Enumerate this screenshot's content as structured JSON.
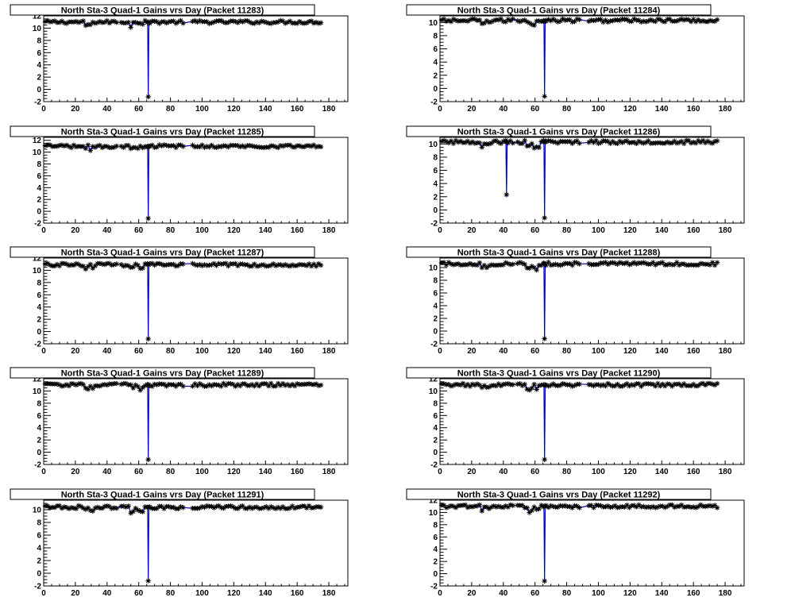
{
  "chart_data": [
    {
      "type": "line",
      "title": "North Sta-3 Quad-1 Gains vrs Day (Packet 11283)",
      "xlim": [
        0,
        192
      ],
      "ylim": [
        -2,
        12
      ],
      "xticks": [
        0,
        20,
        40,
        60,
        80,
        100,
        120,
        140,
        160,
        180
      ],
      "yticks": [
        -2,
        0,
        2,
        4,
        6,
        8,
        10,
        12
      ],
      "baseline": 11.0,
      "dips": [
        {
          "x": 66,
          "y": -1.2
        }
      ],
      "series": [
        {
          "marker": "star",
          "line_color": "#0000cc"
        }
      ]
    },
    {
      "type": "line",
      "title": "North Sta-3 Quad-1 Gains vrs Day (Packet 11284)",
      "xlim": [
        0,
        192
      ],
      "ylim": [
        -2,
        11
      ],
      "xticks": [
        0,
        20,
        40,
        60,
        80,
        100,
        120,
        140,
        160,
        180
      ],
      "yticks": [
        -2,
        0,
        2,
        4,
        6,
        8,
        10
      ],
      "baseline": 10.3,
      "dips": [
        {
          "x": 66,
          "y": -1.2
        }
      ],
      "series": [
        {
          "marker": "star",
          "line_color": "#0000cc"
        }
      ]
    },
    {
      "type": "line",
      "title": "North Sta-3 Quad-1 Gains vrs Day (Packet 11285)",
      "xlim": [
        0,
        192
      ],
      "ylim": [
        -2,
        12.5
      ],
      "xticks": [
        0,
        20,
        40,
        60,
        80,
        100,
        120,
        140,
        160,
        180
      ],
      "yticks": [
        -2,
        0,
        2,
        4,
        6,
        8,
        10,
        12
      ],
      "baseline": 11.0,
      "dips": [
        {
          "x": 66,
          "y": -1.2
        }
      ],
      "series": [
        {
          "marker": "star",
          "line_color": "#0000cc"
        }
      ]
    },
    {
      "type": "line",
      "title": "North Sta-3 Quad-1 Gains vrs Day (Packet 11286)",
      "xlim": [
        0,
        192
      ],
      "ylim": [
        -2,
        11
      ],
      "xticks": [
        0,
        20,
        40,
        60,
        80,
        100,
        120,
        140,
        160,
        180
      ],
      "yticks": [
        -2,
        0,
        2,
        4,
        6,
        8,
        10
      ],
      "baseline": 10.3,
      "dips": [
        {
          "x": 42,
          "y": 2.3
        },
        {
          "x": 66,
          "y": -1.2
        }
      ],
      "series": [
        {
          "marker": "star",
          "line_color": "#0000cc"
        }
      ]
    },
    {
      "type": "line",
      "title": "North Sta-3 Quad-1 Gains vrs Day (Packet 11287)",
      "xlim": [
        0,
        192
      ],
      "ylim": [
        -2,
        12
      ],
      "xticks": [
        0,
        20,
        40,
        60,
        80,
        100,
        120,
        140,
        160,
        180
      ],
      "yticks": [
        -2,
        0,
        2,
        4,
        6,
        8,
        10,
        12
      ],
      "baseline": 10.9,
      "dips": [
        {
          "x": 66,
          "y": -1.2
        }
      ],
      "series": [
        {
          "marker": "star",
          "line_color": "#0000cc"
        }
      ]
    },
    {
      "type": "line",
      "title": "North Sta-3 Quad-1 Gains vrs Day (Packet 11288)",
      "xlim": [
        0,
        192
      ],
      "ylim": [
        -2,
        11.5
      ],
      "xticks": [
        0,
        20,
        40,
        60,
        80,
        100,
        120,
        140,
        160,
        180
      ],
      "yticks": [
        -2,
        0,
        2,
        4,
        6,
        8,
        10
      ],
      "baseline": 10.6,
      "dips": [
        {
          "x": 66,
          "y": -1.2
        }
      ],
      "series": [
        {
          "marker": "star",
          "line_color": "#0000cc"
        }
      ]
    },
    {
      "type": "line",
      "title": "North Sta-3 Quad-1 Gains vrs Day (Packet 11289)",
      "xlim": [
        0,
        192
      ],
      "ylim": [
        -2,
        12
      ],
      "xticks": [
        0,
        20,
        40,
        60,
        80,
        100,
        120,
        140,
        160,
        180
      ],
      "yticks": [
        -2,
        0,
        2,
        4,
        6,
        8,
        10,
        12
      ],
      "baseline": 11.0,
      "dips": [
        {
          "x": 66,
          "y": -1.2
        }
      ],
      "series": [
        {
          "marker": "star",
          "line_color": "#0000cc"
        }
      ]
    },
    {
      "type": "line",
      "title": "North Sta-3 Quad-1 Gains vrs Day (Packet 11290)",
      "xlim": [
        0,
        192
      ],
      "ylim": [
        -2,
        12
      ],
      "xticks": [
        0,
        20,
        40,
        60,
        80,
        100,
        120,
        140,
        160,
        180
      ],
      "yticks": [
        -2,
        0,
        2,
        4,
        6,
        8,
        10,
        12
      ],
      "baseline": 11.0,
      "dips": [
        {
          "x": 66,
          "y": -1.2
        }
      ],
      "series": [
        {
          "marker": "star",
          "line_color": "#0000cc"
        }
      ]
    },
    {
      "type": "line",
      "title": "North Sta-3 Quad-1 Gains vrs Day (Packet 11291)",
      "xlim": [
        0,
        192
      ],
      "ylim": [
        -2,
        11.5
      ],
      "xticks": [
        0,
        20,
        40,
        60,
        80,
        100,
        120,
        140,
        160,
        180
      ],
      "yticks": [
        -2,
        0,
        2,
        4,
        6,
        8,
        10
      ],
      "baseline": 10.4,
      "dips": [
        {
          "x": 66,
          "y": -1.2
        }
      ],
      "series": [
        {
          "marker": "star",
          "line_color": "#0000cc"
        }
      ]
    },
    {
      "type": "line",
      "title": "North Sta-3 Quad-1 Gains vrs Day (Packet 11292)",
      "xlim": [
        0,
        192
      ],
      "ylim": [
        -2,
        12
      ],
      "xticks": [
        0,
        20,
        40,
        60,
        80,
        100,
        120,
        140,
        160,
        180
      ],
      "yticks": [
        -2,
        0,
        2,
        4,
        6,
        8,
        10,
        12
      ],
      "baseline": 11.0,
      "dips": [
        {
          "x": 66,
          "y": -1.2
        }
      ],
      "series": [
        {
          "marker": "star",
          "line_color": "#0000cc"
        }
      ]
    }
  ]
}
